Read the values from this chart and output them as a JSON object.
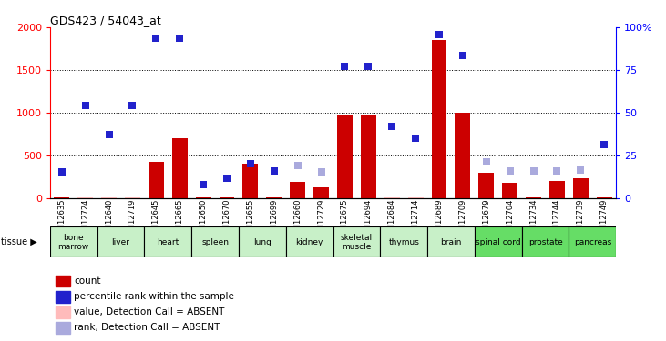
{
  "title": "GDS423 / 54043_at",
  "samples": [
    "GSM12635",
    "GSM12724",
    "GSM12640",
    "GSM12719",
    "GSM12645",
    "GSM12665",
    "GSM12650",
    "GSM12670",
    "GSM12655",
    "GSM12699",
    "GSM12660",
    "GSM12729",
    "GSM12675",
    "GSM12694",
    "GSM12684",
    "GSM12714",
    "GSM12689",
    "GSM12709",
    "GSM12679",
    "GSM12704",
    "GSM12734",
    "GSM12744",
    "GSM12739",
    "GSM12749"
  ],
  "tissues": [
    {
      "label": "bone\nmarrow",
      "start": 0,
      "end": 2,
      "color": "#c8f0c8"
    },
    {
      "label": "liver",
      "start": 2,
      "end": 4,
      "color": "#c8f0c8"
    },
    {
      "label": "heart",
      "start": 4,
      "end": 6,
      "color": "#c8f0c8"
    },
    {
      "label": "spleen",
      "start": 6,
      "end": 8,
      "color": "#c8f0c8"
    },
    {
      "label": "lung",
      "start": 8,
      "end": 10,
      "color": "#c8f0c8"
    },
    {
      "label": "kidney",
      "start": 10,
      "end": 12,
      "color": "#c8f0c8"
    },
    {
      "label": "skeletal\nmuscle",
      "start": 12,
      "end": 14,
      "color": "#c8f0c8"
    },
    {
      "label": "thymus",
      "start": 14,
      "end": 16,
      "color": "#c8f0c8"
    },
    {
      "label": "brain",
      "start": 16,
      "end": 18,
      "color": "#c8f0c8"
    },
    {
      "label": "spinal cord",
      "start": 18,
      "end": 20,
      "color": "#66dd66"
    },
    {
      "label": "prostate",
      "start": 20,
      "end": 22,
      "color": "#66dd66"
    },
    {
      "label": "pancreas",
      "start": 22,
      "end": 24,
      "color": "#66dd66"
    }
  ],
  "count_values": [
    5,
    5,
    5,
    5,
    420,
    700,
    5,
    5,
    400,
    5,
    190,
    120,
    980,
    980,
    5,
    5,
    1850,
    1000,
    290,
    175,
    5,
    200,
    230,
    5
  ],
  "count_absent": [
    false,
    true,
    true,
    true,
    false,
    false,
    false,
    false,
    false,
    false,
    false,
    false,
    false,
    false,
    true,
    true,
    false,
    false,
    false,
    false,
    false,
    false,
    false,
    false
  ],
  "rank_values": [
    300,
    1080,
    740,
    1080,
    1870,
    1870,
    160,
    230,
    400,
    320,
    380,
    300,
    1540,
    1540,
    840,
    700,
    1920,
    1670,
    420,
    310,
    310,
    320,
    330,
    620
  ],
  "rank_absent": [
    false,
    false,
    false,
    false,
    false,
    false,
    false,
    false,
    false,
    false,
    true,
    true,
    false,
    false,
    false,
    false,
    false,
    false,
    true,
    true,
    true,
    true,
    true,
    false
  ],
  "ylim": [
    0,
    2000
  ],
  "y2lim": [
    0,
    100
  ],
  "yticks": [
    0,
    500,
    1000,
    1500,
    2000
  ],
  "y2ticks": [
    0,
    25,
    50,
    75,
    100
  ],
  "y2labels": [
    "0",
    "25",
    "50",
    "75",
    "100%"
  ],
  "color_count": "#cc0000",
  "color_count_absent": "#ffbbbb",
  "color_rank": "#2222cc",
  "color_rank_absent": "#aaaadd",
  "grid_lines": [
    500,
    1000,
    1500
  ],
  "bar_width": 0.65
}
